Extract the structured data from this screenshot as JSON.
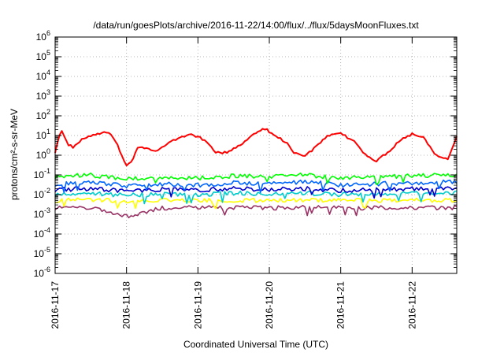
{
  "chart_data": {
    "type": "line",
    "title": "/data/run/goesPlots/archive/2016-11-22/14:00/flux/../flux/5daysMoonFluxes.txt",
    "xlabel": "Coordinated Universal Time (UTC)",
    "ylabel": "protons/cm²-s-sr-MeV",
    "yscale": "log",
    "ylim": [
      1e-06,
      1000000.0
    ],
    "xlim": [
      "2016-11-17T00:00",
      "2016-11-22T15:00"
    ],
    "x_ticks": [
      "2016-11-17",
      "2016-11-18",
      "2016-11-19",
      "2016-11-20",
      "2016-11-21",
      "2016-11-22"
    ],
    "y_ticks": [
      {
        "base": "10",
        "exp": "6"
      },
      {
        "base": "10",
        "exp": "5"
      },
      {
        "base": "10",
        "exp": "4"
      },
      {
        "base": "10",
        "exp": "3"
      },
      {
        "base": "10",
        "exp": "2"
      },
      {
        "base": "10",
        "exp": "1"
      },
      {
        "base": "10",
        "exp": "0"
      },
      {
        "base": "10",
        "exp": "-1"
      },
      {
        "base": "10",
        "exp": "-2"
      },
      {
        "base": "10",
        "exp": "-3"
      },
      {
        "base": "10",
        "exp": "-4"
      },
      {
        "base": "10",
        "exp": "-5"
      },
      {
        "base": "10",
        "exp": "-6"
      }
    ],
    "grid": true,
    "legend": "none",
    "series": [
      {
        "color": "#ff0000",
        "x_hours": [
          0,
          2,
          4,
          6,
          9,
          12,
          15,
          18,
          21,
          24,
          26,
          28,
          30,
          34,
          38,
          42,
          46,
          50,
          54,
          56,
          58,
          62,
          66,
          70,
          74,
          78,
          80,
          84,
          88,
          92,
          96,
          100,
          104,
          108,
          112,
          116,
          120,
          124,
          128,
          132,
          135
        ],
        "y": [
          1.5,
          20,
          4,
          2.5,
          6,
          10,
          12,
          15,
          3,
          0.3,
          0.6,
          3,
          2.5,
          1.5,
          4,
          8,
          12,
          6,
          1.5,
          1.2,
          1.5,
          3,
          10,
          25,
          10,
          4,
          1.5,
          0.9,
          3,
          10,
          12,
          6,
          1.2,
          0.5,
          1.5,
          6,
          12,
          8,
          1,
          0.7,
          9
        ]
      },
      {
        "color": "#00ff00",
        "x_hours": [
          0,
          12,
          24,
          36,
          48,
          60,
          72,
          84,
          96,
          108,
          120,
          135
        ],
        "y": [
          0.08,
          0.1,
          0.06,
          0.08,
          0.07,
          0.09,
          0.08,
          0.1,
          0.07,
          0.08,
          0.09,
          0.1
        ]
      },
      {
        "color": "#0066ff",
        "x_hours": [
          0,
          12,
          24,
          36,
          48,
          60,
          72,
          84,
          96,
          108,
          120,
          135
        ],
        "y": [
          0.035,
          0.04,
          0.028,
          0.035,
          0.03,
          0.04,
          0.035,
          0.045,
          0.03,
          0.035,
          0.04,
          0.045
        ]
      },
      {
        "color": "#0000cc",
        "x_hours": [
          0,
          12,
          24,
          36,
          48,
          60,
          72,
          84,
          96,
          108,
          120,
          135
        ],
        "y": [
          0.018,
          0.02,
          0.015,
          0.018,
          0.017,
          0.02,
          0.018,
          0.02,
          0.016,
          0.018,
          0.02,
          0.022
        ]
      },
      {
        "color": "#00cccc",
        "x_hours": [
          0,
          12,
          24,
          36,
          48,
          60,
          72,
          84,
          96,
          108,
          120,
          135
        ],
        "y": [
          0.01,
          0.012,
          0.009,
          0.011,
          0.01,
          0.012,
          0.011,
          0.012,
          0.01,
          0.011,
          0.012,
          0.012
        ]
      },
      {
        "color": "#ffff00",
        "x_hours": [
          0,
          12,
          24,
          36,
          48,
          60,
          72,
          84,
          96,
          108,
          120,
          135
        ],
        "y": [
          0.005,
          0.0055,
          0.0045,
          0.005,
          0.005,
          0.0052,
          0.005,
          0.0055,
          0.005,
          0.005,
          0.0052,
          0.005
        ]
      },
      {
        "color": "#993366",
        "x_hours": [
          0,
          12,
          24,
          36,
          48,
          60,
          72,
          84,
          96,
          108,
          120,
          135
        ],
        "y": [
          0.0022,
          0.0022,
          0.0008,
          0.0021,
          0.0022,
          0.0022,
          0.0021,
          0.0022,
          0.0021,
          0.0022,
          0.0022,
          0.0021
        ]
      }
    ]
  }
}
